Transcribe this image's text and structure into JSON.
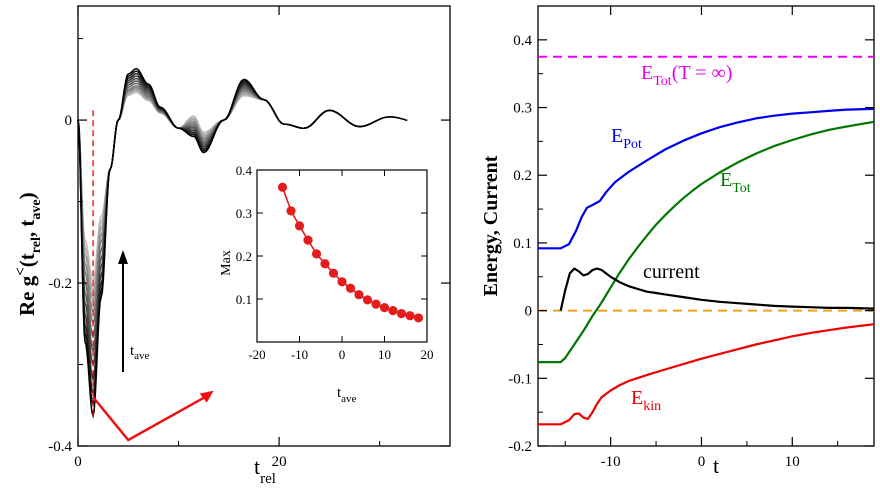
{
  "chart_data": [
    {
      "type": "line",
      "panel": "left",
      "xlabel_main": "t",
      "xlabel_sub": "rel",
      "ylabel": "Re g<(t_rel, t_ave)",
      "ylabel_main": "Re g",
      "ylabel_sup": "<",
      "ylabel_args": "(t",
      "ylabel_sub1": "rel",
      "ylabel_mid": ", t",
      "ylabel_sub2": "ave",
      "ylabel_close": ")",
      "xlim": [
        0,
        37
      ],
      "ylim": [
        -0.4,
        0.14
      ],
      "x_ticks": [
        0,
        20
      ],
      "x_tick_labels": [
        "0",
        "20"
      ],
      "y_ticks": [
        -0.4,
        -0.2,
        0
      ],
      "y_tick_labels": [
        "-0.4",
        "-0.2",
        "0"
      ],
      "family": {
        "count": 12,
        "min_first": [
          -0.363,
          -0.349,
          -0.335,
          -0.318,
          -0.3,
          -0.283,
          -0.266,
          -0.249,
          -0.235,
          -0.221,
          -0.209,
          -0.197
        ],
        "max_second": [
          0.063,
          0.06,
          0.057,
          0.054,
          0.051,
          0.048,
          0.045,
          0.042,
          0.04,
          0.038,
          0.036,
          0.034
        ],
        "color_dark": "#000000",
        "color_light": "#bdbdbd"
      },
      "min_marker_x": 1.5,
      "min_marker_color": "#ff0000",
      "arrow_label_main": "t",
      "arrow_label_sub": "ave",
      "red_arrow_color": "#ee1111",
      "inset": {
        "type": "line",
        "xlabel_main": "t",
        "xlabel_sub": "ave",
        "ylabel": "Max",
        "xlim": [
          -20,
          20
        ],
        "ylim": [
          0,
          0.4
        ],
        "x_ticks": [
          -20,
          -10,
          0,
          10,
          20
        ],
        "x_tick_labels": [
          "-20",
          "-10",
          "0",
          "10",
          "20"
        ],
        "y_ticks": [
          0.1,
          0.2,
          0.3,
          0.4
        ],
        "y_tick_labels": [
          "0.1",
          "0.2",
          "0.3",
          "0.4"
        ],
        "x": [
          -14,
          -12,
          -10,
          -8,
          -6,
          -4,
          -2,
          0,
          2,
          4,
          6,
          8,
          10,
          12,
          14,
          16,
          18
        ],
        "y": [
          0.36,
          0.305,
          0.27,
          0.237,
          0.205,
          0.182,
          0.16,
          0.14,
          0.125,
          0.11,
          0.098,
          0.088,
          0.08,
          0.073,
          0.066,
          0.061,
          0.056
        ],
        "color": "#e51c1c"
      }
    },
    {
      "type": "line",
      "panel": "right",
      "xlabel": "t",
      "ylabel": "Energy, Current",
      "xlim": [
        -18,
        19
      ],
      "ylim": [
        -0.2,
        0.45
      ],
      "x_ticks": [
        -10,
        0,
        10
      ],
      "x_tick_labels": [
        "-10",
        "0",
        "10"
      ],
      "y_ticks": [
        -0.2,
        -0.1,
        0,
        0.1,
        0.2,
        0.3,
        0.4
      ],
      "y_tick_labels": [
        "-0.2",
        "-0.1",
        "0",
        "0.1",
        "0.2",
        "0.3",
        "0.4"
      ],
      "series": [
        {
          "name": "E_Pot",
          "label_main": "E",
          "label_sub": "Pot",
          "color": "#0000ee",
          "x": [
            -18,
            -15.5,
            -14.6,
            -13.8,
            -13.2,
            -12.6,
            -12,
            -11.2,
            -10.5,
            -9.5,
            -8,
            -6,
            -4,
            -2,
            0,
            2,
            4,
            6,
            8,
            10,
            12,
            14,
            16,
            19
          ],
          "y": [
            0.092,
            0.092,
            0.098,
            0.118,
            0.138,
            0.152,
            0.156,
            0.162,
            0.175,
            0.19,
            0.205,
            0.222,
            0.238,
            0.251,
            0.262,
            0.271,
            0.278,
            0.284,
            0.288,
            0.291,
            0.293,
            0.295,
            0.297,
            0.298
          ]
        },
        {
          "name": "E_Tot",
          "label_main": "E",
          "label_sub": "Tot",
          "color": "#007700",
          "x": [
            -18,
            -15.5,
            -15,
            -14,
            -13,
            -12,
            -11,
            -10,
            -9,
            -8,
            -7,
            -6,
            -5,
            -4,
            -3,
            -2,
            -1,
            0,
            2,
            4,
            6,
            8,
            10,
            12,
            14,
            16,
            19
          ],
          "y": [
            -0.076,
            -0.076,
            -0.07,
            -0.05,
            -0.03,
            -0.008,
            0.012,
            0.034,
            0.056,
            0.076,
            0.094,
            0.111,
            0.127,
            0.141,
            0.154,
            0.166,
            0.177,
            0.187,
            0.204,
            0.219,
            0.232,
            0.243,
            0.252,
            0.26,
            0.267,
            0.272,
            0.279
          ]
        },
        {
          "name": "current",
          "label": "current",
          "color": "#000000",
          "x": [
            -15.5,
            -15,
            -14.5,
            -14,
            -13.5,
            -13,
            -12.5,
            -12,
            -11.5,
            -11,
            -10.5,
            -10,
            -9,
            -8,
            -7,
            -6,
            -5,
            -4,
            -2,
            0,
            2,
            4,
            6,
            8,
            10,
            12,
            14,
            16,
            19
          ],
          "y": [
            0.0,
            0.03,
            0.055,
            0.062,
            0.058,
            0.052,
            0.054,
            0.06,
            0.062,
            0.06,
            0.055,
            0.05,
            0.042,
            0.036,
            0.032,
            0.028,
            0.026,
            0.024,
            0.02,
            0.016,
            0.013,
            0.011,
            0.009,
            0.007,
            0.006,
            0.005,
            0.004,
            0.004,
            0.003
          ]
        },
        {
          "name": "E_kin",
          "label_main": "E",
          "label_sub": "kin",
          "color": "#ee0000",
          "x": [
            -18,
            -15.5,
            -14.6,
            -14,
            -13.5,
            -13,
            -12.5,
            -12,
            -11.5,
            -11,
            -10,
            -9,
            -8,
            -6,
            -4,
            -2,
            0,
            2,
            4,
            6,
            8,
            10,
            12,
            14,
            16,
            19
          ],
          "y": [
            -0.168,
            -0.168,
            -0.162,
            -0.153,
            -0.152,
            -0.158,
            -0.16,
            -0.15,
            -0.138,
            -0.128,
            -0.118,
            -0.11,
            -0.104,
            -0.095,
            -0.087,
            -0.079,
            -0.071,
            -0.064,
            -0.057,
            -0.05,
            -0.044,
            -0.038,
            -0.033,
            -0.029,
            -0.025,
            -0.02
          ]
        }
      ],
      "reference_lines": [
        {
          "name": "E_Tot(T=∞)",
          "y": 0.375,
          "color": "#e600e6",
          "style": "dashed",
          "label_main": "E",
          "label_sub": "Tot",
          "label_tail": "(T = ∞)"
        },
        {
          "name": "zero",
          "y": 0.0,
          "color": "#f0a020",
          "style": "dashed"
        }
      ]
    }
  ]
}
